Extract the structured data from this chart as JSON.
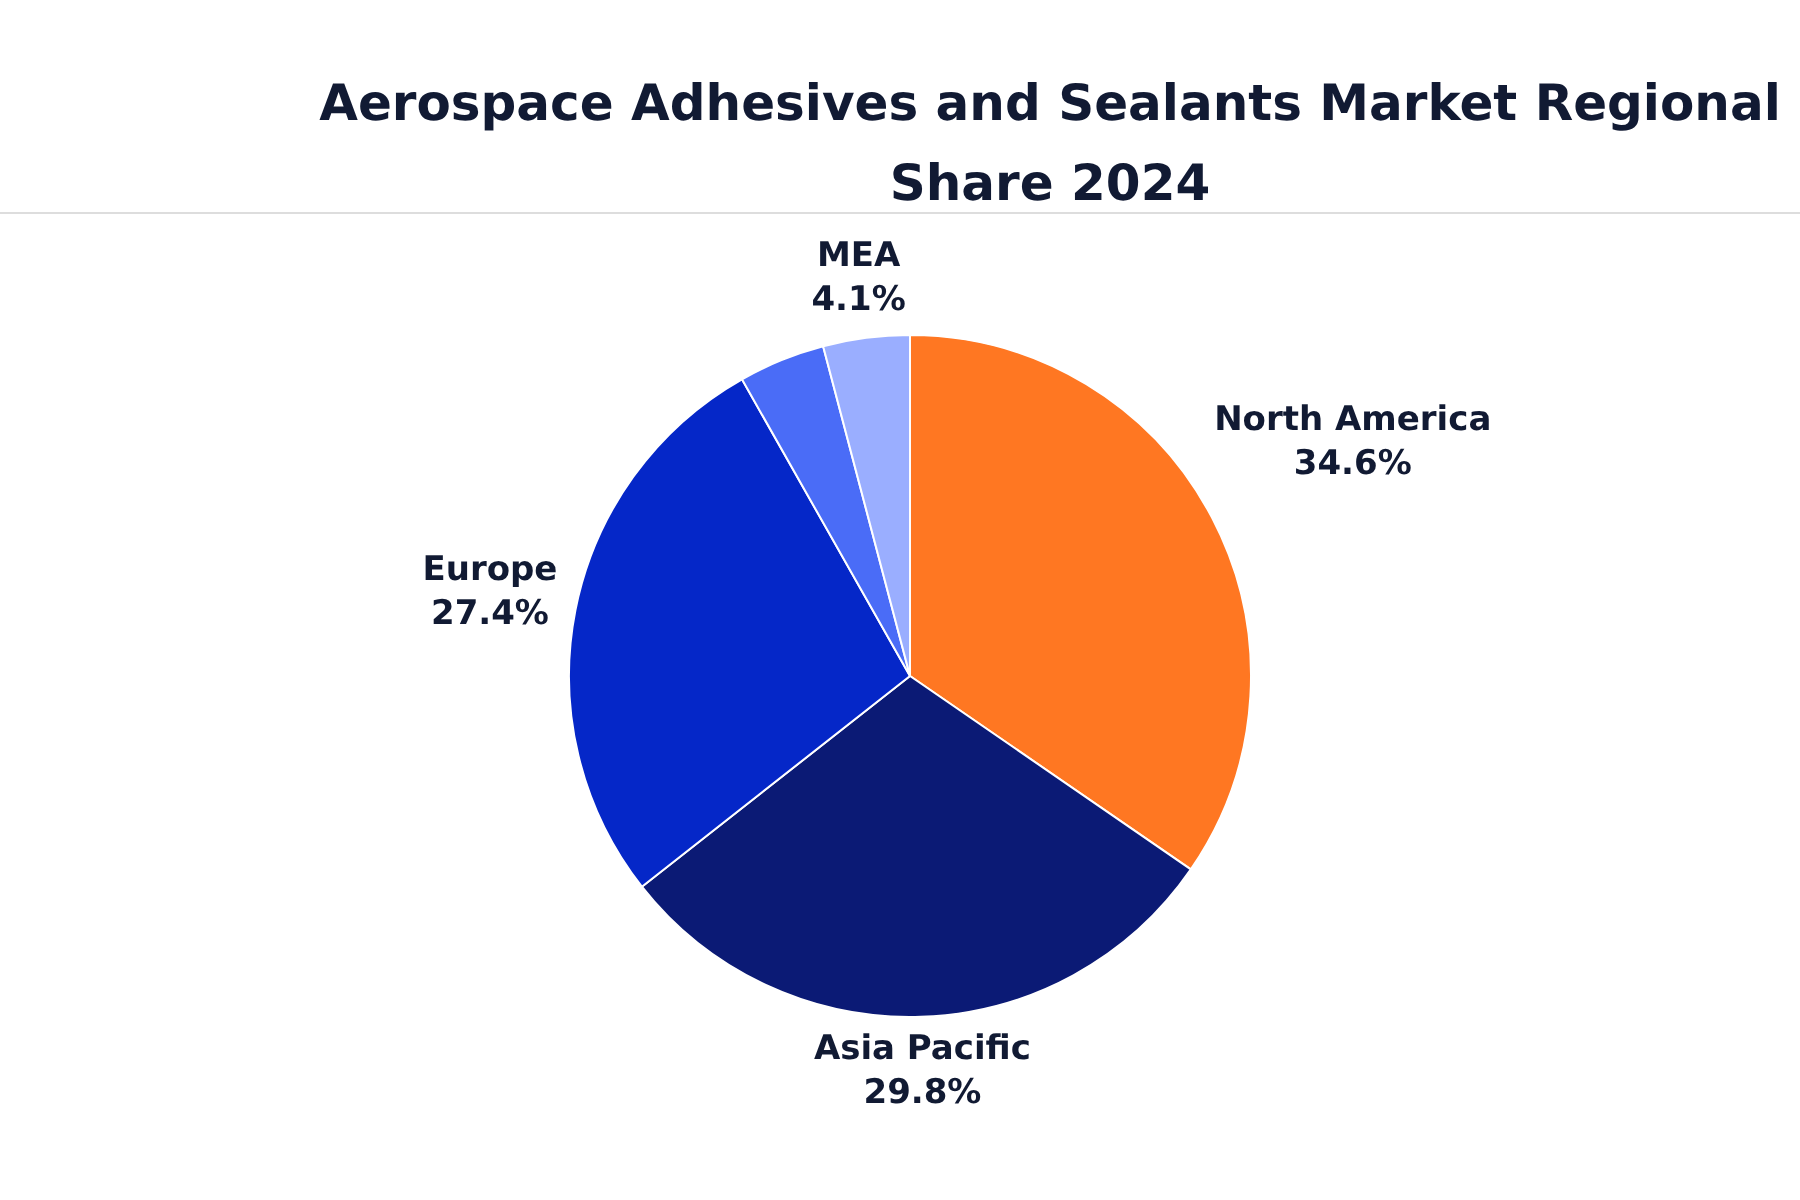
{
  "chart_data": {
    "type": "pie",
    "title": "Aerospace Adhesives and Sealants Market Regional Share 2024",
    "categories": [
      "North America",
      "Asia Pacific",
      "Europe",
      null,
      "MEA"
    ],
    "values": [
      34.6,
      29.8,
      27.4,
      4.1,
      4.1
    ],
    "colors": [
      "#ff7722",
      "#0b1a75",
      "#0527c8",
      "#4a6cf7",
      "#9aaeff"
    ],
    "value_labels": [
      "34.6%",
      "29.8%",
      "27.4%",
      null,
      "4.1%"
    ],
    "legend": false
  }
}
